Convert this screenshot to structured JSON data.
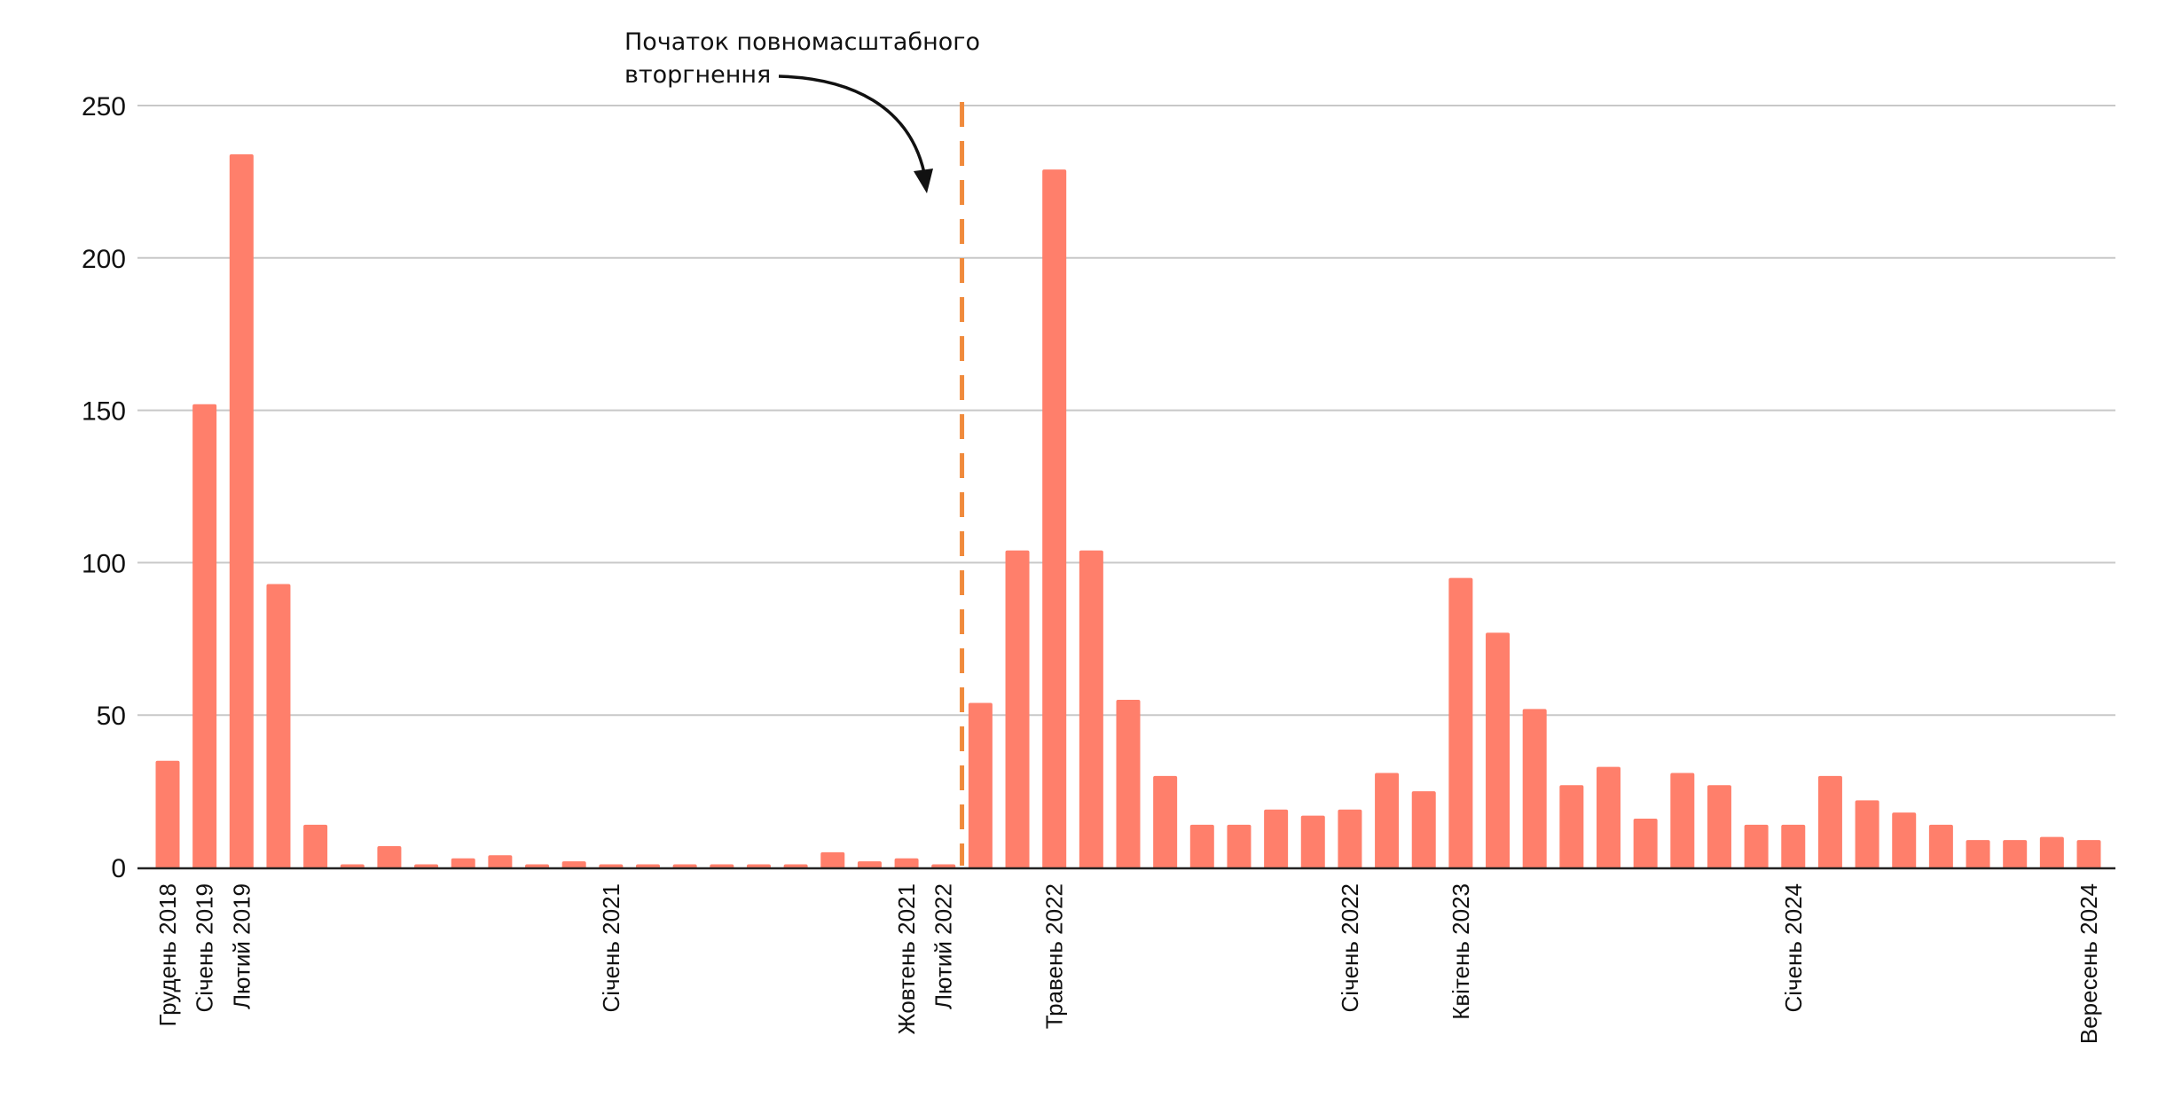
{
  "chart_data": {
    "type": "bar",
    "title": "",
    "xlabel": "",
    "ylabel": "",
    "ylim": [
      0,
      250
    ],
    "yticks": [
      0,
      50,
      100,
      150,
      200,
      250
    ],
    "grid": true,
    "colors": {
      "bar": "#ff7f6b",
      "grid": "#c8c8c8",
      "axis": "#222222",
      "event_line": "#f08a3c",
      "annotation": "#111111"
    },
    "values": [
      35,
      152,
      234,
      93,
      14,
      1,
      7,
      1,
      3,
      4,
      1,
      2,
      1,
      1,
      1,
      1,
      1,
      1,
      5,
      2,
      3,
      1,
      54,
      104,
      229,
      104,
      55,
      30,
      14,
      14,
      19,
      17,
      19,
      31,
      25,
      95,
      77,
      52,
      27,
      33,
      16,
      31,
      27,
      14,
      14,
      30,
      22,
      18,
      14,
      9,
      9,
      10,
      9
    ],
    "tick_labels": [
      {
        "index": 0,
        "label": "Грудень 2018"
      },
      {
        "index": 1,
        "label": "Січень 2019"
      },
      {
        "index": 2,
        "label": "Лютий 2019"
      },
      {
        "index": 12,
        "label": "Січень 2021"
      },
      {
        "index": 20,
        "label": "Жовтень 2021"
      },
      {
        "index": 21,
        "label": "Лютий 2022"
      },
      {
        "index": 24,
        "label": "Травень 2022"
      },
      {
        "index": 32,
        "label": "Січень 2022"
      },
      {
        "index": 35,
        "label": "Квітень 2023"
      },
      {
        "index": 44,
        "label": "Січень 2024"
      },
      {
        "index": 52,
        "label": "Вересень 2024"
      }
    ],
    "event_line": {
      "after_index": 21
    },
    "annotation": {
      "lines": [
        "Початок повномасштабного",
        "вторгнення"
      ]
    }
  }
}
